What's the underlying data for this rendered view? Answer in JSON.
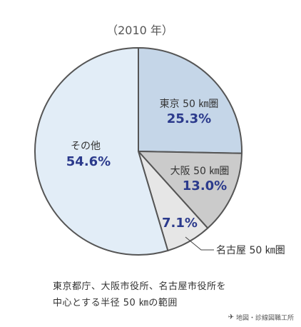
{
  "chart_data": {
    "type": "pie",
    "title": "（2010 年）",
    "colors": {
      "outline": "#555555",
      "label_text": "#333333",
      "value_text": "#2b3a8c"
    },
    "slices": [
      {
        "name": "東京 50 ㎞圏",
        "value": 25.3,
        "value_label": "25.3%",
        "color": "#c5d6e8"
      },
      {
        "name": "大阪 50 ㎞圏",
        "value": 13.0,
        "value_label": "13.0%",
        "color": "#cbcbcb"
      },
      {
        "name": "名古屋 50 ㎞圏",
        "value": 7.1,
        "value_label": "7.1%",
        "color": "#e6e6e6"
      },
      {
        "name": "その他",
        "value": 54.6,
        "value_label": "54.6%",
        "color": "#e2edf7"
      }
    ]
  },
  "footnote": {
    "line1": "東京都庁、大阪市役所、名古屋市役所を",
    "line2": "中心とする半径 50 ㎞の範囲"
  },
  "credit": {
    "text": "地図・診線図職工所",
    "mark": "✈"
  }
}
